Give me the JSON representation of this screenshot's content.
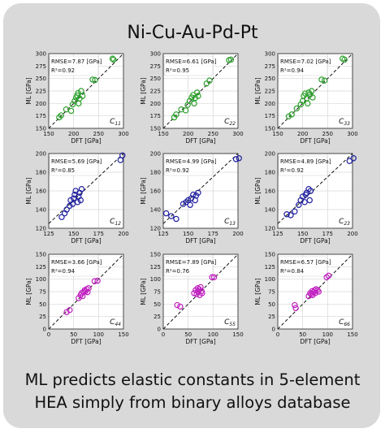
{
  "title": "Ni-Cu-Au-Pd-Pt",
  "footer": {
    "line1": "ML predicts elastic constants in 5-element",
    "line2": "HEA simply from binary alloys database"
  },
  "chart_data": [
    {
      "type": "scatter",
      "label": "C11",
      "sub": "11",
      "color": "#2ca02c",
      "xlabel": "DFT [GPa]",
      "ylabel": "ML [GPa]",
      "xlim": [
        150,
        300
      ],
      "ylim": [
        150,
        300
      ],
      "xticks": [
        150,
        200,
        250,
        300
      ],
      "yticks": [
        150,
        175,
        200,
        225,
        250,
        275,
        300
      ],
      "rmse": "RMSE=7.87 [GPa]",
      "r2": "R²=0.92",
      "points": [
        [
          171,
          172
        ],
        [
          175,
          176
        ],
        [
          185,
          188
        ],
        [
          195,
          185
        ],
        [
          198,
          198
        ],
        [
          202,
          205
        ],
        [
          205,
          212
        ],
        [
          207,
          216
        ],
        [
          209,
          221
        ],
        [
          212,
          210
        ],
        [
          215,
          225
        ],
        [
          218,
          215
        ],
        [
          210,
          200
        ],
        [
          238,
          248
        ],
        [
          243,
          247
        ],
        [
          278,
          290
        ],
        [
          280,
          288
        ]
      ]
    },
    {
      "type": "scatter",
      "label": "C22",
      "sub": "22",
      "color": "#2ca02c",
      "xlabel": "DFT [GPa]",
      "ylabel": "ML [GPa]",
      "xlim": [
        150,
        300
      ],
      "ylim": [
        150,
        300
      ],
      "xticks": [
        150,
        200,
        250,
        300
      ],
      "yticks": [
        150,
        175,
        200,
        225,
        250,
        275,
        300
      ],
      "rmse": "RMSE=6.61 [GPa]",
      "r2": "R²=0.95",
      "points": [
        [
          172,
          172
        ],
        [
          176,
          178
        ],
        [
          186,
          188
        ],
        [
          195,
          186
        ],
        [
          199,
          197
        ],
        [
          203,
          205
        ],
        [
          207,
          212
        ],
        [
          210,
          217
        ],
        [
          214,
          211
        ],
        [
          218,
          222
        ],
        [
          220,
          215
        ],
        [
          212,
          200
        ],
        [
          237,
          240
        ],
        [
          243,
          246
        ],
        [
          282,
          287
        ],
        [
          286,
          288
        ]
      ]
    },
    {
      "type": "scatter",
      "label": "C33",
      "sub": "33",
      "color": "#2ca02c",
      "xlabel": "DFT [GPa]",
      "ylabel": "ML [GPa]",
      "xlim": [
        150,
        300
      ],
      "ylim": [
        150,
        300
      ],
      "xticks": [
        150,
        200,
        250,
        300
      ],
      "yticks": [
        150,
        175,
        200,
        225,
        250,
        275,
        300
      ],
      "rmse": "RMSE=7.02 [GPa]",
      "r2": "R²=0.94",
      "points": [
        [
          172,
          174
        ],
        [
          178,
          178
        ],
        [
          188,
          190
        ],
        [
          196,
          198
        ],
        [
          200,
          205
        ],
        [
          202,
          215
        ],
        [
          205,
          220
        ],
        [
          208,
          210
        ],
        [
          212,
          222
        ],
        [
          215,
          218
        ],
        [
          218,
          225
        ],
        [
          220,
          212
        ],
        [
          210,
          200
        ],
        [
          238,
          248
        ],
        [
          244,
          246
        ],
        [
          280,
          290
        ],
        [
          284,
          288
        ]
      ]
    },
    {
      "type": "scatter",
      "label": "C12",
      "sub": "12",
      "color": "#1f1fa0",
      "xlabel": "DFT [GPa]",
      "ylabel": "ML [GPa]",
      "xlim": [
        125,
        200
      ],
      "ylim": [
        120,
        200
      ],
      "xticks": [
        125,
        150,
        175,
        200
      ],
      "yticks": [
        120,
        140,
        160,
        180,
        200
      ],
      "rmse": "RMSE=5.69 [GPa]",
      "r2": "R²=0.85",
      "points": [
        [
          138,
          132
        ],
        [
          141,
          136
        ],
        [
          143,
          140
        ],
        [
          146,
          144
        ],
        [
          147,
          150
        ],
        [
          149,
          146
        ],
        [
          150,
          152
        ],
        [
          151,
          156
        ],
        [
          152,
          160
        ],
        [
          154,
          148
        ],
        [
          155,
          154
        ],
        [
          156,
          158
        ],
        [
          157,
          150
        ],
        [
          158,
          162
        ],
        [
          197,
          193
        ],
        [
          199,
          198
        ]
      ]
    },
    {
      "type": "scatter",
      "label": "C13",
      "sub": "13",
      "color": "#1f1fa0",
      "xlabel": "DFT [GPa]",
      "ylabel": "ML [GPa]",
      "xlim": [
        125,
        200
      ],
      "ylim": [
        120,
        200
      ],
      "xticks": [
        125,
        150,
        175,
        200
      ],
      "yticks": [
        120,
        140,
        160,
        180,
        200
      ],
      "rmse": "RMSE=4.99 [GPa]",
      "r2": "R²=0.92",
      "points": [
        [
          128,
          136
        ],
        [
          133,
          133
        ],
        [
          138,
          130
        ],
        [
          145,
          146
        ],
        [
          148,
          148
        ],
        [
          150,
          150
        ],
        [
          152,
          145
        ],
        [
          153,
          152
        ],
        [
          155,
          156
        ],
        [
          157,
          150
        ],
        [
          158,
          155
        ],
        [
          160,
          158
        ],
        [
          198,
          194
        ],
        [
          201,
          195
        ]
      ]
    },
    {
      "type": "scatter",
      "label": "C23",
      "sub": "23",
      "color": "#1f1fa0",
      "xlabel": "DFT [GPa]",
      "ylabel": "ML [GPa]",
      "xlim": [
        125,
        200
      ],
      "ylim": [
        120,
        200
      ],
      "xticks": [
        125,
        150,
        175,
        200
      ],
      "yticks": [
        120,
        140,
        160,
        180,
        200
      ],
      "rmse": "RMSE=4.89 [GPa]",
      "r2": "R²=0.92",
      "points": [
        [
          134,
          135
        ],
        [
          138,
          134
        ],
        [
          142,
          138
        ],
        [
          146,
          145
        ],
        [
          148,
          150
        ],
        [
          150,
          154
        ],
        [
          152,
          148
        ],
        [
          153,
          156
        ],
        [
          154,
          158
        ],
        [
          156,
          162
        ],
        [
          157,
          150
        ],
        [
          158,
          160
        ],
        [
          197,
          192
        ],
        [
          201,
          195
        ]
      ]
    },
    {
      "type": "scatter",
      "label": "C44",
      "sub": "44",
      "color": "#c020c0",
      "xlabel": "DFT [GPa]",
      "ylabel": "ML [GPa]",
      "xlim": [
        0,
        150
      ],
      "ylim": [
        0,
        150
      ],
      "xticks": [
        0,
        50,
        100,
        150
      ],
      "yticks": [
        0,
        25,
        50,
        75,
        100,
        125,
        150
      ],
      "rmse": "RMSE=3.66 [GPa]",
      "r2": "R²=0.94",
      "points": [
        [
          36,
          34
        ],
        [
          42,
          38
        ],
        [
          60,
          62
        ],
        [
          64,
          68
        ],
        [
          66,
          72
        ],
        [
          68,
          66
        ],
        [
          70,
          74
        ],
        [
          72,
          78
        ],
        [
          74,
          76
        ],
        [
          76,
          80
        ],
        [
          78,
          74
        ],
        [
          80,
          82
        ],
        [
          92,
          96
        ],
        [
          98,
          97
        ]
      ]
    },
    {
      "type": "scatter",
      "label": "C55",
      "sub": "55",
      "color": "#c020c0",
      "xlabel": "DFT [GPa]",
      "ylabel": "ML [GPa]",
      "xlim": [
        0,
        150
      ],
      "ylim": [
        0,
        150
      ],
      "xticks": [
        0,
        50,
        100,
        150
      ],
      "yticks": [
        0,
        25,
        50,
        75,
        100,
        125,
        150
      ],
      "rmse": "RMSE=7.89 [GPa]",
      "r2": "R²=0.76",
      "points": [
        [
          28,
          48
        ],
        [
          34,
          45
        ],
        [
          62,
          72
        ],
        [
          65,
          78
        ],
        [
          67,
          70
        ],
        [
          69,
          82
        ],
        [
          70,
          75
        ],
        [
          72,
          80
        ],
        [
          73,
          68
        ],
        [
          75,
          84
        ],
        [
          77,
          76
        ],
        [
          78,
          72
        ],
        [
          98,
          104
        ],
        [
          102,
          104
        ]
      ]
    },
    {
      "type": "scatter",
      "label": "C66",
      "sub": "66",
      "color": "#c020c0",
      "xlabel": "DFT [GPa]",
      "ylabel": "ML [GPa]",
      "xlim": [
        0,
        150
      ],
      "ylim": [
        0,
        150
      ],
      "xticks": [
        0,
        50,
        100,
        150
      ],
      "yticks": [
        0,
        25,
        50,
        75,
        100,
        125,
        150
      ],
      "rmse": "RMSE=6.57 [GPa]",
      "r2": "R²=0.84",
      "points": [
        [
          34,
          48
        ],
        [
          36,
          42
        ],
        [
          62,
          66
        ],
        [
          65,
          72
        ],
        [
          67,
          70
        ],
        [
          69,
          76
        ],
        [
          70,
          68
        ],
        [
          72,
          74
        ],
        [
          74,
          78
        ],
        [
          75,
          72
        ],
        [
          77,
          80
        ],
        [
          80,
          78
        ],
        [
          82,
          75
        ],
        [
          98,
          104
        ],
        [
          102,
          107
        ]
      ]
    }
  ]
}
